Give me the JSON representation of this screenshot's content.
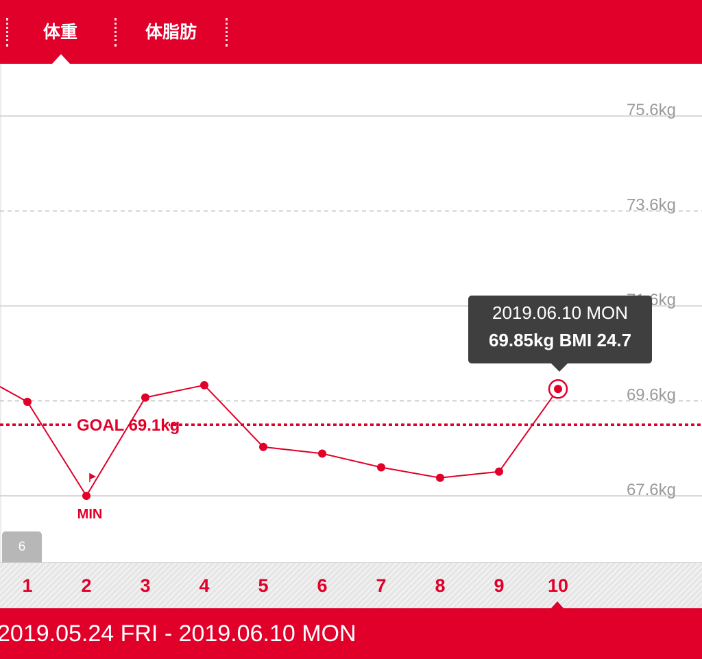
{
  "tabs": {
    "weight": "体重",
    "body_fat": "体脂肪"
  },
  "chart_data": {
    "type": "line",
    "x": [
      "1",
      "2",
      "3",
      "4",
      "5",
      "6",
      "7",
      "8",
      "9",
      "10"
    ],
    "series": [
      {
        "values": [
          69.58,
          67.6,
          69.67,
          69.93,
          68.63,
          68.49,
          68.2,
          67.98,
          68.11,
          69.85
        ]
      }
    ],
    "y_ticks": [
      "75.6kg",
      "73.6kg",
      "71.6kg",
      "69.6kg",
      "67.6kg"
    ],
    "ylim": [
      66.2,
      76.7
    ],
    "goal": {
      "value": 69.1,
      "label": "GOAL 69.1kg"
    },
    "min_label": "MIN",
    "selected_index": 9,
    "line_color": "#e0002a",
    "grid": true
  },
  "tooltip": {
    "date": "2019.06.10 MON",
    "detail": "69.85kg BMI 24.7"
  },
  "month_tab": "6",
  "days": [
    "1",
    "2",
    "3",
    "4",
    "5",
    "6",
    "7",
    "8",
    "9",
    "10"
  ],
  "date_range": "2019.05.24 FRI - 2019.06.10 MON",
  "colors": {
    "accent": "#e0002a",
    "tooltip_bg": "#3f3f3f"
  }
}
